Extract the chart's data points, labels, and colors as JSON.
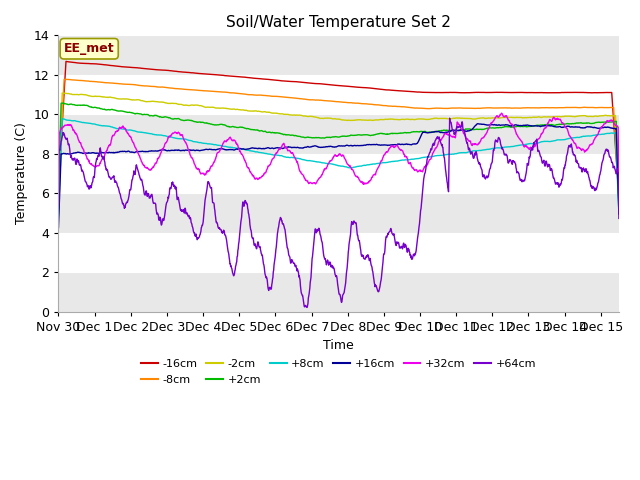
{
  "title": "Soil/Water Temperature Set 2",
  "xlabel": "Time",
  "ylabel": "Temperature (C)",
  "ylim": [
    0,
    14
  ],
  "xlim": [
    0,
    15.5
  ],
  "annotation": "EE_met",
  "bg_color": "#f0f0f0",
  "series": [
    {
      "label": "-16cm",
      "color": "#cc0000"
    },
    {
      "label": "-8cm",
      "color": "#ff8800"
    },
    {
      "label": "-2cm",
      "color": "#cccc00"
    },
    {
      "label": "+2cm",
      "color": "#00bb00"
    },
    {
      "label": "+8cm",
      "color": "#00cccc"
    },
    {
      "label": "+16cm",
      "color": "#000099"
    },
    {
      "label": "+32cm",
      "color": "#ee00ee"
    },
    {
      "label": "+64cm",
      "color": "#7700cc"
    }
  ],
  "xtick_labels": [
    "Nov 30",
    "Dec 1",
    "Dec 2",
    "Dec 3",
    "Dec 4",
    "Dec 5",
    "Dec 6",
    "Dec 7",
    "Dec 8",
    "Dec 9",
    "Dec 10",
    "Dec 11",
    "Dec 12",
    "Dec 13",
    "Dec 14",
    "Dec 15"
  ],
  "xtick_positions": [
    0,
    1,
    2,
    3,
    4,
    5,
    6,
    7,
    8,
    9,
    10,
    11,
    12,
    13,
    14,
    15
  ],
  "ytick_positions": [
    0,
    2,
    4,
    6,
    8,
    10,
    12,
    14
  ]
}
